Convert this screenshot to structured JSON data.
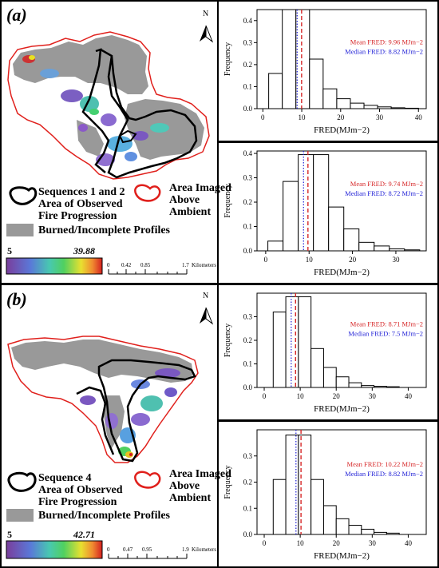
{
  "figure": {
    "panel_a_label": "(a)",
    "panel_b_label": "(b)"
  },
  "map_a": {
    "north": "N",
    "legend_black": "Sequences 1 and 2\nArea of Observed\nFire Progression",
    "legend_red": "Area Imaged\nAbove\nAmbient",
    "legend_gray": "Burned/Incomplete Profiles",
    "cbar_min": "5",
    "cbar_max": "39.88",
    "scale_ticks": [
      "0",
      "0.42",
      "0.85",
      "1.7"
    ],
    "scale_unit": "Kilometers"
  },
  "map_b": {
    "north": "N",
    "legend_black": "Sequence 4\nArea of Observed\nFire Progression",
    "legend_red": "Area Imaged\nAbove\nAmbient",
    "legend_gray": "Burned/Incomplete Profiles",
    "cbar_min": "5",
    "cbar_max": "42.71",
    "scale_ticks": [
      "0",
      "0.47",
      "0.95",
      "1.9"
    ],
    "scale_unit": "Kilometers"
  },
  "colors": {
    "mean_line": "#d62728",
    "median_line": "#1f1fd6",
    "fire_outline": "#000000",
    "ambient_outline": "#e0201c",
    "burned_gray": "#999999"
  },
  "chart_data": [
    {
      "type": "bar",
      "ylabel": "Frequency",
      "xlabel": "FRED(MJm−2)",
      "xlim": [
        -1.5,
        42
      ],
      "ylim": [
        0,
        0.45
      ],
      "xticks": [
        0,
        10,
        20,
        30,
        40
      ],
      "yticks": [
        0.0,
        0.1,
        0.2,
        0.3,
        0.4
      ],
      "bin_width": 3.5,
      "bin_start": 1.5,
      "values": [
        0.16,
        0.45,
        0.45,
        0.225,
        0.09,
        0.045,
        0.025,
        0.015,
        0.008,
        0.004,
        0.002
      ],
      "mean": 9.96,
      "median": 8.82,
      "mean_label": "Mean FRED: 9.96 MJm−2",
      "median_label": "Median FRED: 8.82 MJm−2"
    },
    {
      "type": "bar",
      "ylabel": "Frequency",
      "xlabel": "FRED(MJm−2)",
      "xlim": [
        -2,
        37
      ],
      "ylim": [
        0,
        0.41
      ],
      "xticks": [
        0,
        10,
        20,
        30
      ],
      "yticks": [
        0.0,
        0.1,
        0.2,
        0.3,
        0.4
      ],
      "bin_width": 3.5,
      "bin_start": 0.5,
      "values": [
        0.04,
        0.285,
        0.395,
        0.395,
        0.18,
        0.09,
        0.035,
        0.02,
        0.008,
        0.004
      ],
      "mean": 9.74,
      "median": 8.72,
      "mean_label": "Mean FRED: 9.74 MJm−2",
      "median_label": "Median FRED: 8.72 MJm−2"
    },
    {
      "type": "bar",
      "ylabel": "Frequency",
      "xlabel": "FRED(MJm−2)",
      "xlim": [
        -2,
        45
      ],
      "ylim": [
        0,
        0.4
      ],
      "xticks": [
        0,
        10,
        20,
        30,
        40
      ],
      "yticks": [
        0.0,
        0.1,
        0.2,
        0.3
      ],
      "bin_width": 3.5,
      "bin_start": 2.5,
      "values": [
        0.32,
        0.385,
        0.385,
        0.165,
        0.085,
        0.045,
        0.02,
        0.008,
        0.005,
        0.003
      ],
      "mean": 8.71,
      "median": 7.5,
      "mean_label": "Mean FRED: 8.71 MJm−2",
      "median_label": "Median FRED: 7.5 MJm−2"
    },
    {
      "type": "bar",
      "ylabel": "Frequency",
      "xlabel": "FRED(MJm−2)",
      "xlim": [
        -2,
        45
      ],
      "ylim": [
        0,
        0.4
      ],
      "xticks": [
        0,
        10,
        20,
        30,
        40
      ],
      "yticks": [
        0.0,
        0.1,
        0.2,
        0.3
      ],
      "bin_width": 3.5,
      "bin_start": 2.5,
      "values": [
        0.21,
        0.38,
        0.38,
        0.21,
        0.11,
        0.06,
        0.035,
        0.02,
        0.008,
        0.005
      ],
      "mean": 10.22,
      "median": 8.82,
      "mean_label": "Mean FRED: 10.22 MJm−2",
      "median_label": "Median FRED: 8.82 MJm−2"
    }
  ]
}
